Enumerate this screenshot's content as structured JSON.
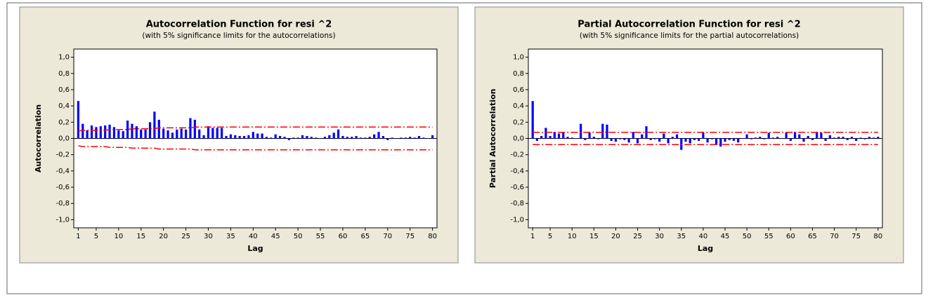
{
  "chart_data": [
    {
      "type": "bar",
      "title": "Autocorrelation Function for resi ^2",
      "subtitle": "(with 5% significance limits for the autocorrelations)",
      "x_label": "Lag",
      "y_label": "Autocorrelation",
      "color": "#0000ff",
      "limit_color": "#ff0000",
      "x": [
        1,
        2,
        3,
        4,
        5,
        6,
        7,
        8,
        9,
        10,
        11,
        12,
        13,
        14,
        15,
        16,
        17,
        18,
        19,
        20,
        21,
        22,
        23,
        24,
        25,
        26,
        27,
        28,
        29,
        30,
        31,
        32,
        33,
        34,
        35,
        36,
        37,
        38,
        39,
        40,
        41,
        42,
        43,
        44,
        45,
        46,
        47,
        48,
        49,
        50,
        51,
        52,
        53,
        54,
        55,
        56,
        57,
        58,
        59,
        60,
        61,
        62,
        63,
        64,
        65,
        66,
        67,
        68,
        69,
        70,
        71,
        72,
        73,
        74,
        75,
        76,
        77,
        78,
        79,
        80
      ],
      "values": [
        0.46,
        0.18,
        0.1,
        0.16,
        0.14,
        0.15,
        0.16,
        0.17,
        0.14,
        0.1,
        0.09,
        0.22,
        0.18,
        0.15,
        0.11,
        0.11,
        0.2,
        0.33,
        0.23,
        0.12,
        0.1,
        0.07,
        0.11,
        0.12,
        0.11,
        0.25,
        0.23,
        0.11,
        0.04,
        0.15,
        0.13,
        0.13,
        0.13,
        0.03,
        0.05,
        0.04,
        0.03,
        0.03,
        0.04,
        0.08,
        0.06,
        0.06,
        0.02,
        0.01,
        0.05,
        0.03,
        0.02,
        -0.02,
        0.01,
        0.01,
        0.04,
        0.03,
        0.02,
        0.01,
        0.0,
        0.02,
        0.04,
        0.07,
        0.11,
        0.03,
        0.02,
        0.02,
        0.03,
        0.01,
        0.01,
        0.02,
        0.05,
        0.08,
        0.03,
        -0.02,
        0.01,
        0.0,
        0.01,
        0.01,
        0.02,
        0.01,
        0.03,
        0.01,
        0.0,
        0.04
      ],
      "upper_limit": [
        0.09,
        0.1,
        0.1,
        0.1,
        0.1,
        0.1,
        0.1,
        0.11,
        0.11,
        0.11,
        0.11,
        0.11,
        0.12,
        0.12,
        0.12,
        0.12,
        0.12,
        0.12,
        0.13,
        0.13,
        0.13,
        0.13,
        0.13,
        0.13,
        0.13,
        0.13,
        0.14,
        0.14,
        0.14,
        0.14,
        0.14,
        0.14,
        0.14,
        0.14,
        0.14,
        0.14,
        0.14,
        0.14,
        0.14,
        0.14,
        0.14,
        0.14,
        0.14,
        0.14,
        0.14,
        0.14,
        0.14,
        0.14,
        0.14,
        0.14,
        0.14,
        0.14,
        0.14,
        0.14,
        0.14,
        0.14,
        0.14,
        0.14,
        0.14,
        0.14,
        0.14,
        0.14,
        0.14,
        0.14,
        0.14,
        0.14,
        0.14,
        0.14,
        0.14,
        0.14,
        0.14,
        0.14,
        0.14,
        0.14,
        0.14,
        0.14,
        0.14,
        0.14,
        0.14,
        0.14
      ],
      "lower_limit": [
        -0.09,
        -0.1,
        -0.1,
        -0.1,
        -0.1,
        -0.1,
        -0.1,
        -0.11,
        -0.11,
        -0.11,
        -0.11,
        -0.11,
        -0.12,
        -0.12,
        -0.12,
        -0.12,
        -0.12,
        -0.12,
        -0.13,
        -0.13,
        -0.13,
        -0.13,
        -0.13,
        -0.13,
        -0.13,
        -0.13,
        -0.14,
        -0.14,
        -0.14,
        -0.14,
        -0.14,
        -0.14,
        -0.14,
        -0.14,
        -0.14,
        -0.14,
        -0.14,
        -0.14,
        -0.14,
        -0.14,
        -0.14,
        -0.14,
        -0.14,
        -0.14,
        -0.14,
        -0.14,
        -0.14,
        -0.14,
        -0.14,
        -0.14,
        -0.14,
        -0.14,
        -0.14,
        -0.14,
        -0.14,
        -0.14,
        -0.14,
        -0.14,
        -0.14,
        -0.14,
        -0.14,
        -0.14,
        -0.14,
        -0.14,
        -0.14,
        -0.14,
        -0.14,
        -0.14,
        -0.14,
        -0.14,
        -0.14,
        -0.14,
        -0.14,
        -0.14,
        -0.14,
        -0.14,
        -0.14,
        -0.14,
        -0.14,
        -0.14
      ],
      "xlim": [
        0,
        81
      ],
      "xticks": [
        1,
        5,
        10,
        15,
        20,
        25,
        30,
        35,
        40,
        45,
        50,
        55,
        60,
        65,
        70,
        75,
        80
      ],
      "ylim": [
        -1.1,
        1.1
      ],
      "yticks": [
        {
          "value": 1.0,
          "label": "1,0"
        },
        {
          "value": 0.8,
          "label": "0,8"
        },
        {
          "value": 0.6,
          "label": "0,6"
        },
        {
          "value": 0.4,
          "label": "0,4"
        },
        {
          "value": 0.2,
          "label": "0,2"
        },
        {
          "value": 0.0,
          "label": "0,0"
        },
        {
          "value": -0.2,
          "label": "-0,2"
        },
        {
          "value": -0.4,
          "label": "-0,4"
        },
        {
          "value": -0.6,
          "label": "-0,6"
        },
        {
          "value": -0.8,
          "label": "-0,8"
        },
        {
          "value": -1.0,
          "label": "-1,0"
        }
      ]
    },
    {
      "type": "bar",
      "title": "Partial Autocorrelation Function for resi ^2",
      "subtitle": "(with 5% significance limits for the partial autocorrelations)",
      "x_label": "Lag",
      "y_label": "Partial Autocorrelation",
      "color": "#0000ff",
      "limit_color": "#ff0000",
      "x": [
        1,
        2,
        3,
        4,
        5,
        6,
        7,
        8,
        9,
        10,
        11,
        12,
        13,
        14,
        15,
        16,
        17,
        18,
        19,
        20,
        21,
        22,
        23,
        24,
        25,
        26,
        27,
        28,
        29,
        30,
        31,
        32,
        33,
        34,
        35,
        36,
        37,
        38,
        39,
        40,
        41,
        42,
        43,
        44,
        45,
        46,
        47,
        48,
        49,
        50,
        51,
        52,
        53,
        54,
        55,
        56,
        57,
        58,
        59,
        60,
        61,
        62,
        63,
        64,
        65,
        66,
        67,
        68,
        69,
        70,
        71,
        72,
        73,
        74,
        75,
        76,
        77,
        78,
        79,
        80
      ],
      "values": [
        0.46,
        -0.03,
        0.03,
        0.13,
        0.03,
        0.08,
        0.06,
        0.08,
        0.02,
        0.01,
        0.0,
        0.18,
        -0.02,
        0.07,
        0.02,
        -0.01,
        0.18,
        0.17,
        -0.03,
        -0.04,
        -0.01,
        -0.02,
        -0.05,
        0.08,
        -0.06,
        0.05,
        0.15,
        -0.02,
        -0.01,
        -0.04,
        0.06,
        -0.06,
        0.02,
        0.05,
        -0.14,
        -0.04,
        -0.06,
        -0.02,
        -0.03,
        0.07,
        -0.05,
        -0.01,
        -0.08,
        -0.1,
        -0.04,
        -0.02,
        -0.03,
        -0.05,
        0.0,
        0.05,
        -0.01,
        0.01,
        0.02,
        -0.01,
        0.07,
        0.01,
        0.02,
        0.0,
        0.07,
        -0.03,
        0.08,
        0.05,
        -0.04,
        0.03,
        -0.02,
        0.08,
        0.07,
        -0.03,
        0.04,
        0.01,
        0.02,
        0.02,
        -0.02,
        0.02,
        -0.03,
        0.01,
        -0.01,
        0.02,
        0.01,
        0.02
      ],
      "upper_limit": 0.075,
      "lower_limit": -0.075,
      "xlim": [
        0,
        81
      ],
      "xticks": [
        1,
        5,
        10,
        15,
        20,
        25,
        30,
        35,
        40,
        45,
        50,
        55,
        60,
        65,
        70,
        75,
        80
      ],
      "ylim": [
        -1.1,
        1.1
      ],
      "yticks": [
        {
          "value": 1.0,
          "label": "1,0"
        },
        {
          "value": 0.8,
          "label": "0,8"
        },
        {
          "value": 0.6,
          "label": "0,6"
        },
        {
          "value": 0.4,
          "label": "0,4"
        },
        {
          "value": 0.2,
          "label": "0,2"
        },
        {
          "value": 0.0,
          "label": "0,0"
        },
        {
          "value": -0.2,
          "label": "-0,2"
        },
        {
          "value": -0.4,
          "label": "-0,4"
        },
        {
          "value": -0.6,
          "label": "-0,6"
        },
        {
          "value": -0.8,
          "label": "-0,8"
        },
        {
          "value": -1.0,
          "label": "-1,0"
        }
      ]
    }
  ]
}
